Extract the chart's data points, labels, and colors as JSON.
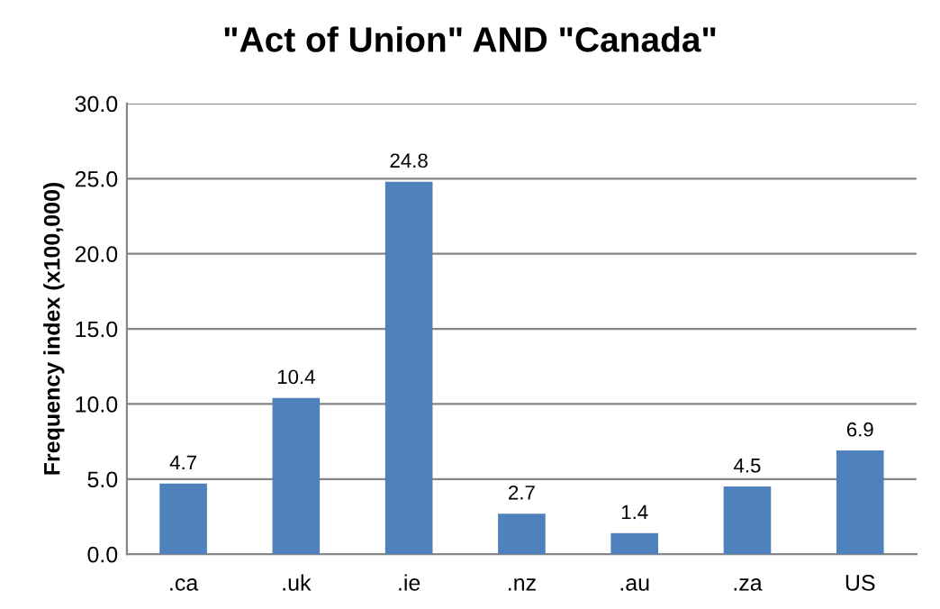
{
  "chart_data": {
    "type": "bar",
    "title": "\"Act of Union\" AND \"Canada\"",
    "ylabel": "Frequency index (x100,000)",
    "categories": [
      ".ca",
      ".uk",
      ".ie",
      ".nz",
      ".au",
      ".za",
      "US"
    ],
    "values": [
      4.7,
      10.4,
      24.8,
      2.7,
      1.4,
      4.5,
      6.9
    ],
    "color": "#4f81bd",
    "ylim": [
      0,
      30
    ],
    "yticks": [
      {
        "value": 0,
        "label": "0.0"
      },
      {
        "value": 5,
        "label": "5.0"
      },
      {
        "value": 10,
        "label": "10.0"
      },
      {
        "value": 15,
        "label": "15.0"
      },
      {
        "value": 20,
        "label": "20.0"
      },
      {
        "value": 25,
        "label": "25.0"
      },
      {
        "value": 30,
        "label": "30.0"
      }
    ],
    "grid": "y",
    "data_labels": true
  }
}
